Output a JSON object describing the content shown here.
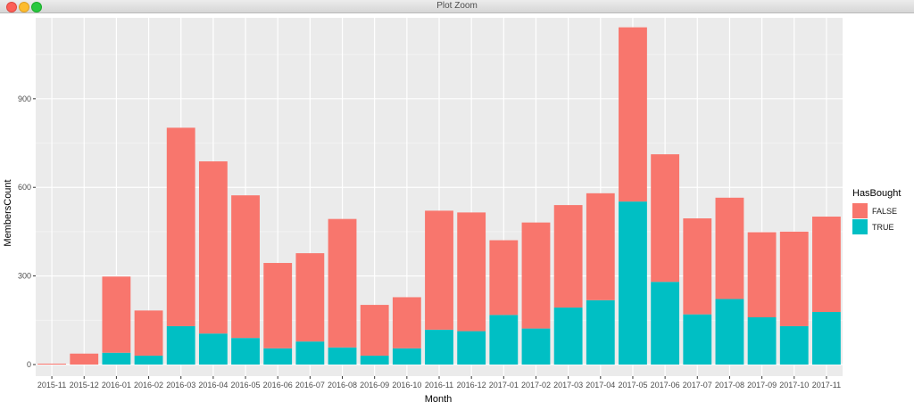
{
  "window": {
    "title": "Plot Zoom"
  },
  "chart_data": {
    "type": "bar",
    "stacked": true,
    "xlabel": "Month",
    "ylabel": "MembersCount",
    "ylim": [
      0,
      1150
    ],
    "yticks": [
      0,
      300,
      600,
      900
    ],
    "grid": true,
    "legend_position": "right",
    "legend_title": "HasBought",
    "categories": [
      "2015-11",
      "2015-12",
      "2016-01",
      "2016-02",
      "2016-03",
      "2016-04",
      "2016-05",
      "2016-06",
      "2016-07",
      "2016-08",
      "2016-09",
      "2016-10",
      "2016-11",
      "2016-12",
      "2017-01",
      "2017-02",
      "2017-03",
      "2017-04",
      "2017-05",
      "2017-06",
      "2017-07",
      "2017-08",
      "2017-09",
      "2017-10",
      "2017-11"
    ],
    "series": [
      {
        "name": "FALSE",
        "color": "#F8766D",
        "values": [
          3,
          37,
          258,
          153,
          672,
          583,
          483,
          289,
          299,
          435,
          172,
          173,
          403,
          402,
          253,
          359,
          347,
          362,
          590,
          432,
          325,
          343,
          288,
          320,
          323
        ]
      },
      {
        "name": "TRUE",
        "color": "#00BFC4",
        "values": [
          0,
          0,
          40,
          30,
          130,
          105,
          90,
          55,
          78,
          58,
          30,
          55,
          118,
          113,
          168,
          122,
          193,
          218,
          552,
          280,
          170,
          222,
          160,
          130,
          178
        ]
      }
    ]
  }
}
